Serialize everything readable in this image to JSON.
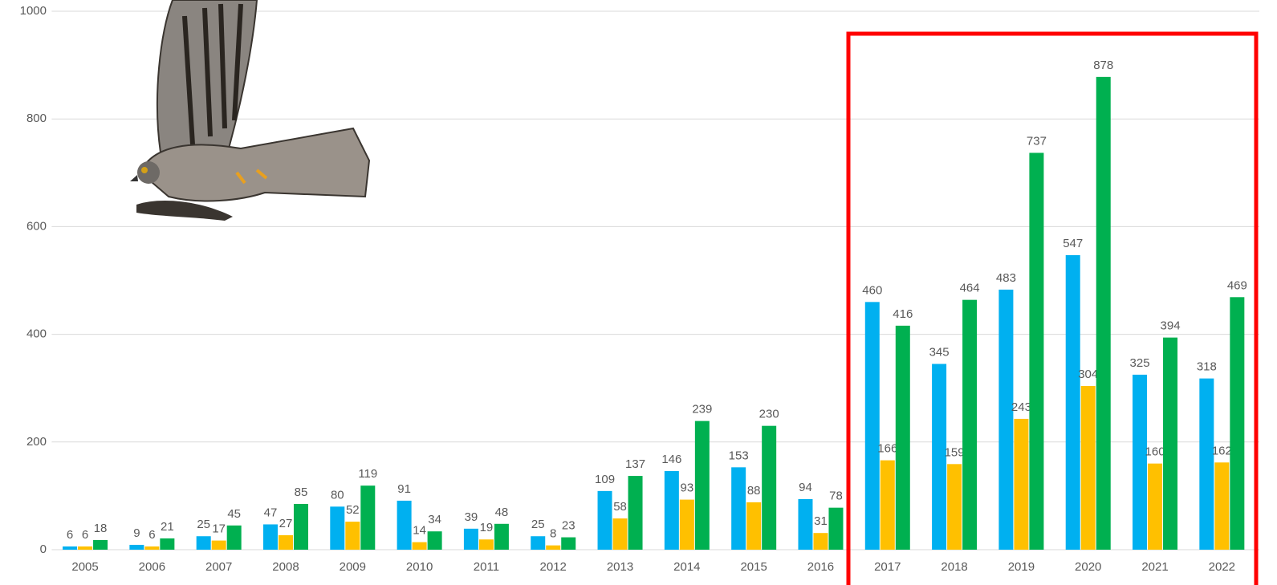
{
  "chart_data": {
    "type": "bar",
    "categories": [
      "2005",
      "2006",
      "2007",
      "2008",
      "2009",
      "2010",
      "2011",
      "2012",
      "2013",
      "2014",
      "2015",
      "2016",
      "2017",
      "2018",
      "2019",
      "2020",
      "2021",
      "2022"
    ],
    "series": [
      {
        "color": "#00b0f0",
        "values": [
          6,
          9,
          25,
          47,
          80,
          91,
          39,
          25,
          109,
          146,
          153,
          94,
          460,
          345,
          483,
          547,
          325,
          318
        ]
      },
      {
        "color": "#ffc000",
        "values": [
          6,
          6,
          17,
          27,
          52,
          14,
          19,
          8,
          58,
          93,
          88,
          31,
          166,
          159,
          243,
          304,
          160,
          162
        ]
      },
      {
        "color": "#00b050",
        "values": [
          18,
          21,
          45,
          85,
          119,
          34,
          48,
          23,
          137,
          239,
          230,
          78,
          416,
          464,
          737,
          878,
          394,
          469
        ]
      }
    ],
    "ylim": [
      0,
      1000
    ],
    "yticks": [
      0,
      200,
      400,
      600,
      800,
      1000
    ],
    "grid": true
  }
}
